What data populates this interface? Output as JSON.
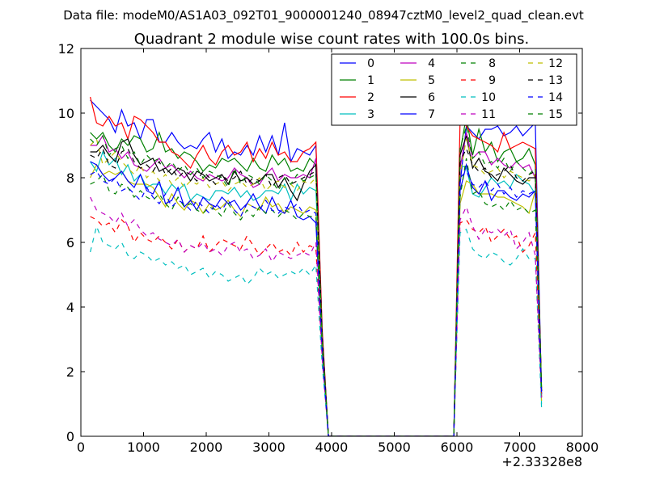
{
  "chart_data": {
    "type": "line",
    "suptitle": "Data file: modeM0/AS1A03_092T01_9000001240_08947cztM0_level2_quad_clean.evt",
    "title": "Quadrant 2 module wise count rates with 100.0s bins.",
    "xlabel": "",
    "ylabel": "",
    "x_offset_label": "+2.33328e8",
    "xlim": [
      0,
      8000
    ],
    "ylim": [
      0,
      12
    ],
    "x_ticks": [
      0,
      1000,
      2000,
      3000,
      4000,
      5000,
      6000,
      7000,
      8000
    ],
    "y_ticks": [
      0,
      2,
      4,
      6,
      8,
      10,
      12
    ],
    "grid": false,
    "legend_position": "top-right",
    "x_start": 150,
    "x_step": 100,
    "series": [
      {
        "name": "0",
        "color": "#0000ff",
        "style": "solid",
        "values": [
          10.4,
          10.2,
          10.0,
          9.8,
          9.4,
          10.1,
          9.6,
          9.7,
          9.2,
          9.8,
          9.8,
          9.1,
          9.1,
          9.4,
          9.1,
          8.9,
          9.0,
          8.9,
          9.2,
          9.4,
          8.8,
          9.2,
          8.6,
          8.8,
          8.7,
          9.0,
          8.7,
          9.3,
          8.8,
          9.3,
          8.7,
          9.7,
          8.5,
          8.9,
          8.8,
          8.7,
          9.0,
          3.2,
          0,
          0,
          0,
          0,
          0,
          0,
          0,
          0,
          0,
          0,
          0,
          0,
          0,
          0,
          0,
          0,
          0,
          0,
          0,
          0,
          0,
          7.8,
          9.6,
          9.4,
          9.2,
          9.5,
          9.5,
          9.6,
          9.3,
          9.4,
          9.6,
          9.3,
          9.5,
          9.7,
          1.3
        ]
      },
      {
        "name": "1",
        "color": "#008000",
        "style": "solid",
        "values": [
          9.4,
          9.2,
          9.4,
          9.0,
          8.8,
          9.2,
          9.0,
          9.3,
          9.2,
          8.8,
          8.9,
          9.4,
          8.8,
          8.9,
          8.6,
          8.8,
          8.7,
          8.5,
          8.2,
          8.4,
          8.3,
          8.6,
          8.5,
          8.6,
          8.4,
          8.2,
          8.6,
          8.3,
          8.2,
          8.7,
          8.4,
          8.6,
          8.2,
          8.3,
          8.2,
          8.6,
          8.4,
          3.0,
          0,
          0,
          0,
          0,
          0,
          0,
          0,
          0,
          0,
          0,
          0,
          0,
          0,
          0,
          0,
          0,
          0,
          0,
          0,
          0,
          0,
          8.8,
          9.9,
          8.7,
          9.5,
          8.8,
          9.1,
          8.5,
          8.8,
          8.9,
          8.5,
          8.6,
          8.9,
          8.4,
          1.5
        ]
      },
      {
        "name": "2",
        "color": "#ff0000",
        "style": "solid",
        "values": [
          10.5,
          9.7,
          9.6,
          9.9,
          9.6,
          9.7,
          9.2,
          9.9,
          9.8,
          9.6,
          9.4,
          9.1,
          9.1,
          8.8,
          8.7,
          8.5,
          8.3,
          8.7,
          9.0,
          8.6,
          8.4,
          8.8,
          9.0,
          8.7,
          8.8,
          9.1,
          8.5,
          8.9,
          8.6,
          9.1,
          8.7,
          8.8,
          8.5,
          8.5,
          8.8,
          8.9,
          9.1,
          3.3,
          0,
          0,
          0,
          0,
          0,
          0,
          0,
          0,
          0,
          0,
          0,
          0,
          0,
          0,
          0,
          0,
          0,
          0,
          0,
          0,
          0,
          9.8,
          9.6,
          9.3,
          9.2,
          9.1,
          9.0,
          8.8,
          9.4,
          8.9,
          9.0,
          9.1,
          9.0,
          8.9,
          1.4
        ]
      },
      {
        "name": "3",
        "color": "#00bfbf",
        "style": "solid",
        "values": [
          8.5,
          8.2,
          8.8,
          8.4,
          8.6,
          8.1,
          8.4,
          7.9,
          8.1,
          7.7,
          7.8,
          7.8,
          7.5,
          7.8,
          7.6,
          7.8,
          7.3,
          7.5,
          7.4,
          7.3,
          7.6,
          7.6,
          7.5,
          7.7,
          7.4,
          7.6,
          7.3,
          7.4,
          7.6,
          7.6,
          7.5,
          7.8,
          7.3,
          7.8,
          7.5,
          7.7,
          7.6,
          3.0,
          0,
          0,
          0,
          0,
          0,
          0,
          0,
          0,
          0,
          0,
          0,
          0,
          0,
          0,
          0,
          0,
          0,
          0,
          0,
          0,
          0,
          8.4,
          8.3,
          7.5,
          7.4,
          7.7,
          8.0,
          7.8,
          7.9,
          7.7,
          8.1,
          7.9,
          7.8,
          7.5,
          1.0
        ]
      },
      {
        "name": "4",
        "color": "#bf00bf",
        "style": "solid",
        "values": [
          9.0,
          9.0,
          9.3,
          8.8,
          8.9,
          8.6,
          8.8,
          8.4,
          8.3,
          8.2,
          8.4,
          8.6,
          8.3,
          8.4,
          8.2,
          8.0,
          8.2,
          8.0,
          7.9,
          8.1,
          8.0,
          7.9,
          8.0,
          8.3,
          8.1,
          8.0,
          7.7,
          7.8,
          8.1,
          8.3,
          7.9,
          8.1,
          8.0,
          8.0,
          8.1,
          8.0,
          8.6,
          2.9,
          0,
          0,
          0,
          0,
          0,
          0,
          0,
          0,
          0,
          0,
          0,
          0,
          0,
          0,
          0,
          0,
          0,
          0,
          0,
          0,
          0,
          8.3,
          9.4,
          8.6,
          8.8,
          8.8,
          8.4,
          8.6,
          8.4,
          8.3,
          8.5,
          8.3,
          8.4,
          8.0,
          1.2
        ]
      },
      {
        "name": "5",
        "color": "#bfbf00",
        "style": "solid",
        "values": [
          8.0,
          8.4,
          8.1,
          8.2,
          8.1,
          8.2,
          7.9,
          7.8,
          7.8,
          7.8,
          7.7,
          7.4,
          7.1,
          7.5,
          7.2,
          7.0,
          7.3,
          7.2,
          6.9,
          7.2,
          7.0,
          7.1,
          7.3,
          7.0,
          6.8,
          7.2,
          7.1,
          7.0,
          7.4,
          7.1,
          7.2,
          6.9,
          7.1,
          7.0,
          6.9,
          7.1,
          7.0,
          2.8,
          0,
          0,
          0,
          0,
          0,
          0,
          0,
          0,
          0,
          0,
          0,
          0,
          0,
          0,
          0,
          0,
          0,
          0,
          0,
          0,
          0,
          7.2,
          7.9,
          7.8,
          7.5,
          7.5,
          7.5,
          7.4,
          7.4,
          7.3,
          7.2,
          7.1,
          6.9,
          7.6,
          1.1
        ]
      },
      {
        "name": "6",
        "color": "#000000",
        "style": "solid",
        "values": [
          8.8,
          8.8,
          9.0,
          8.7,
          8.5,
          9.1,
          9.2,
          8.7,
          8.4,
          8.5,
          8.6,
          8.2,
          8.3,
          8.1,
          8.3,
          8.2,
          7.9,
          8.2,
          8.1,
          7.9,
          8.0,
          8.1,
          7.8,
          8.2,
          7.9,
          8.0,
          7.8,
          7.9,
          8.1,
          8.1,
          7.7,
          8.0,
          7.6,
          7.3,
          7.8,
          8.2,
          8.4,
          3.1,
          0,
          0,
          0,
          0,
          0,
          0,
          0,
          0,
          0,
          0,
          0,
          0,
          0,
          0,
          0,
          0,
          0,
          0,
          0,
          0,
          0,
          8.7,
          9.3,
          8.3,
          8.6,
          8.2,
          8.1,
          7.9,
          8.3,
          8.1,
          7.9,
          7.8,
          8.0,
          8.0,
          1.4
        ]
      },
      {
        "name": "7",
        "color": "#0000ff",
        "style": "solid",
        "values": [
          8.5,
          8.4,
          8.1,
          7.9,
          8.0,
          8.2,
          7.9,
          7.7,
          8.1,
          7.6,
          7.5,
          7.9,
          7.2,
          7.3,
          7.7,
          7.1,
          7.3,
          7.0,
          7.4,
          7.2,
          7.1,
          7.4,
          7.2,
          7.3,
          7.0,
          7.2,
          7.5,
          7.1,
          6.9,
          7.4,
          7.0,
          6.9,
          7.3,
          6.8,
          6.7,
          6.8,
          6.6,
          2.6,
          0,
          0,
          0,
          0,
          0,
          0,
          0,
          0,
          0,
          0,
          0,
          0,
          0,
          0,
          0,
          0,
          0,
          0,
          0,
          0,
          0,
          7.6,
          8.4,
          7.7,
          7.5,
          7.9,
          7.3,
          7.6,
          7.6,
          7.4,
          7.3,
          7.5,
          7.4,
          7.6,
          1.3
        ]
      },
      {
        "name": "8",
        "color": "#008000",
        "style": "dashed",
        "values": [
          7.8,
          7.9,
          8.1,
          7.6,
          7.5,
          7.8,
          7.7,
          7.4,
          7.6,
          7.4,
          7.3,
          7.5,
          7.2,
          7.0,
          7.4,
          7.1,
          7.2,
          7.0,
          6.9,
          7.1,
          7.0,
          6.8,
          7.2,
          6.9,
          6.7,
          7.0,
          6.8,
          7.1,
          6.9,
          7.0,
          6.8,
          7.0,
          6.9,
          6.7,
          6.9,
          6.8,
          6.8,
          2.7,
          0,
          0,
          0,
          0,
          0,
          0,
          0,
          0,
          0,
          0,
          0,
          0,
          0,
          0,
          0,
          0,
          0,
          0,
          0,
          0,
          0,
          7.4,
          8.6,
          7.5,
          7.6,
          7.2,
          7.1,
          7.2,
          7.0,
          7.3,
          7.0,
          7.1,
          6.9,
          7.0,
          1.2
        ]
      },
      {
        "name": "9",
        "color": "#ff0000",
        "style": "dashed",
        "values": [
          6.8,
          6.7,
          6.5,
          6.6,
          6.3,
          6.7,
          6.5,
          6.0,
          6.3,
          6.1,
          6.0,
          6.2,
          6.0,
          5.8,
          6.1,
          5.7,
          5.9,
          5.8,
          6.2,
          5.7,
          5.9,
          6.1,
          6.0,
          5.9,
          5.8,
          6.2,
          5.9,
          5.6,
          5.8,
          6.0,
          5.7,
          5.8,
          5.6,
          6.0,
          5.7,
          5.9,
          5.8,
          2.4,
          0,
          0,
          0,
          0,
          0,
          0,
          0,
          0,
          0,
          0,
          0,
          0,
          0,
          0,
          0,
          0,
          0,
          0,
          0,
          0,
          0,
          6.6,
          6.7,
          6.4,
          6.3,
          6.5,
          6.0,
          6.2,
          6.4,
          6.1,
          6.2,
          5.7,
          5.9,
          6.3,
          1.2
        ]
      },
      {
        "name": "10",
        "color": "#00bfbf",
        "style": "dashed",
        "values": [
          5.7,
          6.5,
          6.0,
          5.9,
          5.8,
          6.0,
          5.6,
          5.5,
          5.7,
          5.6,
          5.4,
          5.5,
          5.3,
          5.4,
          5.2,
          5.3,
          5.0,
          5.1,
          5.2,
          4.9,
          5.1,
          5.0,
          4.8,
          4.9,
          5.0,
          4.7,
          4.9,
          5.2,
          5.0,
          5.1,
          4.9,
          5.0,
          5.1,
          5.0,
          5.2,
          5.0,
          5.3,
          2.2,
          0,
          0,
          0,
          0,
          0,
          0,
          0,
          0,
          0,
          0,
          0,
          0,
          0,
          0,
          0,
          0,
          0,
          0,
          0,
          0,
          0,
          6.3,
          6.4,
          5.8,
          5.6,
          5.5,
          5.7,
          5.6,
          5.4,
          5.3,
          5.5,
          5.8,
          5.5,
          5.5,
          0.9
        ]
      },
      {
        "name": "11",
        "color": "#bf00bf",
        "style": "dashed",
        "values": [
          7.4,
          7.0,
          6.9,
          6.8,
          6.6,
          6.9,
          6.5,
          6.7,
          6.4,
          6.2,
          6.3,
          6.1,
          6.0,
          5.9,
          6.1,
          5.7,
          5.9,
          5.8,
          6.0,
          5.7,
          5.8,
          5.6,
          5.9,
          6.0,
          5.7,
          5.8,
          5.5,
          5.6,
          5.8,
          5.4,
          5.7,
          5.6,
          5.5,
          5.6,
          5.7,
          5.6,
          6.0,
          2.4,
          0,
          0,
          0,
          0,
          0,
          0,
          0,
          0,
          0,
          0,
          0,
          0,
          0,
          0,
          0,
          0,
          0,
          0,
          0,
          0,
          0,
          6.7,
          7.1,
          6.5,
          6.1,
          6.4,
          6.3,
          6.4,
          6.2,
          6.4,
          5.8,
          6.0,
          6.3,
          5.6,
          1.2
        ]
      },
      {
        "name": "12",
        "color": "#bfbf00",
        "style": "dashed",
        "values": [
          9.0,
          9.2,
          8.4,
          8.6,
          8.8,
          8.5,
          8.3,
          8.1,
          8.4,
          8.0,
          8.2,
          7.9,
          8.1,
          7.8,
          8.0,
          7.7,
          7.9,
          7.8,
          8.0,
          7.7,
          7.8,
          7.9,
          7.6,
          7.8,
          7.9,
          7.7,
          7.8,
          8.0,
          7.6,
          7.8,
          7.9,
          7.7,
          7.8,
          7.6,
          7.9,
          7.8,
          8.0,
          2.9,
          0,
          0,
          0,
          0,
          0,
          0,
          0,
          0,
          0,
          0,
          0,
          0,
          0,
          0,
          0,
          0,
          0,
          0,
          0,
          0,
          0,
          8.1,
          9.2,
          8.4,
          8.3,
          8.1,
          8.2,
          8.3,
          8.0,
          8.2,
          8.1,
          8.0,
          7.9,
          8.1,
          1.3
        ]
      },
      {
        "name": "13",
        "color": "#000000",
        "style": "dashed",
        "values": [
          8.7,
          8.6,
          8.9,
          8.4,
          8.3,
          8.8,
          8.9,
          8.5,
          8.3,
          8.4,
          8.2,
          8.5,
          8.1,
          8.3,
          8.0,
          8.2,
          8.1,
          7.9,
          8.2,
          8.0,
          7.8,
          8.1,
          7.9,
          8.0,
          8.2,
          7.8,
          8.0,
          7.9,
          8.1,
          7.7,
          8.0,
          8.1,
          7.8,
          7.9,
          8.0,
          8.1,
          8.2,
          3.0,
          0,
          0,
          0,
          0,
          0,
          0,
          0,
          0,
          0,
          0,
          0,
          0,
          0,
          0,
          0,
          0,
          0,
          0,
          0,
          0,
          0,
          8.5,
          8.9,
          8.4,
          8.2,
          8.3,
          8.0,
          8.1,
          8.2,
          8.4,
          8.0,
          7.9,
          8.1,
          8.2,
          1.4
        ]
      },
      {
        "name": "14",
        "color": "#0000ff",
        "style": "dashed",
        "values": [
          8.1,
          8.2,
          7.9,
          7.8,
          8.0,
          7.6,
          7.7,
          7.5,
          7.3,
          7.7,
          7.4,
          7.2,
          7.5,
          7.1,
          7.3,
          7.2,
          7.0,
          7.3,
          7.1,
          6.9,
          7.2,
          7.0,
          7.3,
          7.0,
          6.8,
          7.2,
          7.1,
          7.0,
          7.3,
          7.0,
          6.9,
          7.1,
          7.0,
          7.2,
          6.9,
          7.0,
          6.9,
          2.7,
          0,
          0,
          0,
          0,
          0,
          0,
          0,
          0,
          0,
          0,
          0,
          0,
          0,
          0,
          0,
          0,
          0,
          0,
          0,
          0,
          0,
          8.0,
          8.2,
          7.8,
          7.7,
          7.9,
          7.6,
          7.8,
          7.5,
          7.7,
          7.4,
          7.6,
          7.5,
          7.6,
          1.3
        ]
      },
      {
        "name": "15",
        "color": "#008000",
        "style": "dashed",
        "values": [
          9.2,
          9.0,
          9.3,
          8.7,
          8.9,
          9.0,
          8.6,
          8.8,
          8.4,
          8.7,
          8.5,
          8.6,
          8.3,
          8.5,
          8.2,
          8.4,
          8.1,
          8.3,
          8.0,
          8.2,
          8.1,
          8.0,
          7.7,
          8.3,
          7.8,
          8.1,
          8.0,
          7.8,
          8.1,
          7.9,
          7.6,
          8.0,
          7.8,
          8.1,
          7.9,
          8.0,
          8.1,
          3.0,
          0,
          0,
          0,
          0,
          0,
          0,
          0,
          0,
          0,
          0,
          0,
          0,
          0,
          0,
          0,
          0,
          0,
          0,
          0,
          0,
          0,
          8.9,
          9.6,
          8.6,
          8.8,
          8.4,
          8.5,
          8.3,
          8.6,
          8.2,
          8.5,
          8.3,
          8.1,
          8.3,
          1.5
        ]
      }
    ]
  }
}
